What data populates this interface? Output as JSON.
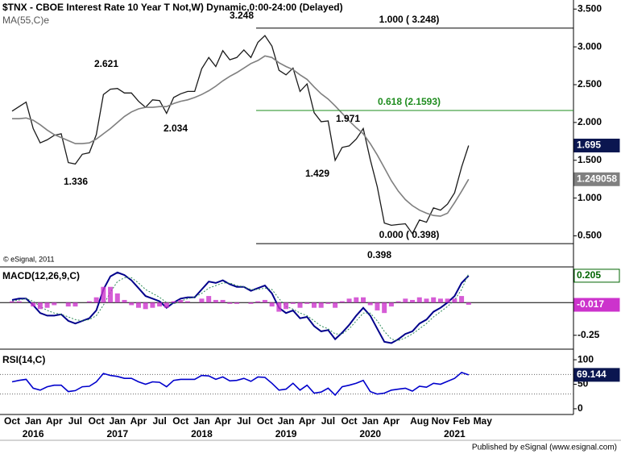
{
  "title": "$TNX - CBOE Interest Rate 10 Year T Not,W) Dynamic,0:00-24:00 (Delayed)",
  "ma_label": "MA(55,C)e",
  "copyright": "© eSignal, 2011",
  "footer": "Published by eSignal (www.esignal.com)",
  "categories": [
    "Oct",
    null,
    null,
    "Jan",
    null,
    null,
    "Apr",
    null,
    null,
    "Jul",
    null,
    null,
    "Oct",
    null,
    null,
    "Jan",
    null,
    null,
    "Apr",
    null,
    null,
    "Jul",
    null,
    null,
    "Oct",
    null,
    null,
    "Jan",
    null,
    null,
    "Apr",
    null,
    null,
    "Jul",
    null,
    null,
    "Oct",
    null,
    null,
    "Jan",
    null,
    null,
    "Apr",
    null,
    null,
    "Jul",
    null,
    null,
    "Oct",
    null,
    null,
    "Jan",
    null,
    null,
    "Apr",
    null,
    null,
    null,
    "Aug",
    null,
    null,
    "Nov",
    null,
    null,
    "Feb",
    null,
    null,
    "May"
  ],
  "years": [
    null,
    null,
    null,
    2016,
    null,
    null,
    null,
    null,
    null,
    null,
    null,
    null,
    null,
    null,
    null,
    2017,
    null,
    null,
    null,
    null,
    null,
    null,
    null,
    null,
    null,
    null,
    null,
    2018,
    null,
    null,
    null,
    null,
    null,
    null,
    null,
    null,
    null,
    null,
    null,
    2019,
    null,
    null,
    null,
    null,
    null,
    null,
    null,
    null,
    null,
    null,
    null,
    2020,
    null,
    null,
    null,
    null,
    null,
    null,
    null,
    null,
    null,
    null,
    null,
    2021,
    null,
    null,
    null,
    null
  ],
  "chart_data": [
    {
      "type": "line",
      "ylim": [
        0.1,
        3.62
      ],
      "yticks": [
        {
          "value": 3.5,
          "label": "3.500"
        },
        {
          "value": 3.0,
          "label": "3.000"
        },
        {
          "value": 2.5,
          "label": "2.500"
        },
        {
          "value": 2.0,
          "label": "2.000"
        },
        {
          "value": 1.5,
          "label": "1.500"
        },
        {
          "value": 1.0,
          "label": "1.000"
        },
        {
          "value": 0.5,
          "label": "0.500"
        }
      ],
      "series": [
        {
          "color": "#1a1a1a",
          "values": [
            2.15,
            2.21,
            2.27,
            1.92,
            1.73,
            1.77,
            1.83,
            1.85,
            1.47,
            1.45,
            1.58,
            1.6,
            1.84,
            2.37,
            2.44,
            2.45,
            2.39,
            2.39,
            2.28,
            2.2,
            2.3,
            2.29,
            2.12,
            2.33,
            2.38,
            2.41,
            2.41,
            2.71,
            2.86,
            2.74,
            2.95,
            2.83,
            2.86,
            2.96,
            2.86,
            3.06,
            3.15,
            3.01,
            2.69,
            2.63,
            2.72,
            2.41,
            2.51,
            2.13,
            2.01,
            2.02,
            1.5,
            1.67,
            1.69,
            1.78,
            1.92,
            1.51,
            1.15,
            0.67,
            0.64,
            0.65,
            0.66,
            0.53,
            0.71,
            0.68,
            0.87,
            0.84,
            0.92,
            1.07,
            1.41,
            1.695,
            null,
            null
          ]
        },
        {
          "color": "#7f7f7f",
          "values": [
            2.05,
            2.05,
            2.06,
            2.03,
            1.97,
            1.9,
            1.84,
            1.8,
            1.76,
            1.72,
            1.72,
            1.73,
            1.78,
            1.85,
            1.92,
            2.0,
            2.08,
            2.14,
            2.18,
            2.2,
            2.2,
            2.21,
            2.21,
            2.25,
            2.28,
            2.3,
            2.33,
            2.37,
            2.42,
            2.48,
            2.55,
            2.61,
            2.66,
            2.72,
            2.78,
            2.82,
            2.88,
            2.86,
            2.79,
            2.74,
            2.7,
            2.63,
            2.57,
            2.47,
            2.38,
            2.31,
            2.22,
            2.12,
            2.02,
            1.93,
            1.85,
            1.72,
            1.57,
            1.4,
            1.23,
            1.09,
            0.98,
            0.9,
            0.84,
            0.8,
            0.77,
            0.76,
            0.8,
            0.94,
            1.09,
            1.249058,
            null,
            null
          ]
        }
      ],
      "fib_levels": [
        {
          "value": 3.248,
          "label": "1.000 ( 3.248)",
          "color": "#000000"
        },
        {
          "value": 2.1593,
          "label": "0.618 (2.1593)",
          "color": "#1e8c1e"
        },
        {
          "value": 0.398,
          "label": "0.000 ( 0.398)",
          "color": "#000000"
        }
      ],
      "annotations": [
        "2.621",
        "2.034",
        "1.336",
        "3.248",
        "1.429",
        "1.971",
        "0.398"
      ]
    },
    {
      "type": "macd",
      "label": "MACD(12,26,9,C)",
      "ylim": [
        -0.35,
        0.26
      ],
      "yticks": [
        -0.25
      ],
      "series": [
        {
          "color": "#00008b",
          "values": [
            0.02,
            0.03,
            0.03,
            -0.02,
            -0.08,
            -0.1,
            -0.1,
            -0.09,
            -0.14,
            -0.16,
            -0.14,
            -0.12,
            -0.06,
            0.1,
            0.2,
            0.23,
            0.21,
            0.17,
            0.11,
            0.05,
            0.03,
            0.01,
            -0.04,
            0.0,
            0.03,
            0.04,
            0.04,
            0.1,
            0.16,
            0.15,
            0.17,
            0.14,
            0.12,
            0.12,
            0.09,
            0.11,
            0.13,
            0.07,
            -0.04,
            -0.08,
            -0.06,
            -0.12,
            -0.11,
            -0.18,
            -0.22,
            -0.21,
            -0.28,
            -0.23,
            -0.17,
            -0.1,
            -0.04,
            -0.1,
            -0.2,
            -0.3,
            -0.31,
            -0.28,
            -0.24,
            -0.22,
            -0.16,
            -0.13,
            -0.07,
            -0.04,
            0.0,
            0.05,
            0.15,
            0.205,
            null,
            null
          ],
          "value_color": "#006400"
        },
        {
          "color": "#2e8b57",
          "values": [
            0.01,
            0.02,
            0.03,
            0.01,
            -0.03,
            -0.06,
            -0.08,
            -0.09,
            -0.11,
            -0.13,
            -0.14,
            -0.13,
            -0.1,
            -0.02,
            0.08,
            0.16,
            0.19,
            0.19,
            0.15,
            0.1,
            0.07,
            0.04,
            0.0,
            -0.01,
            0.01,
            0.03,
            0.04,
            0.07,
            0.11,
            0.13,
            0.15,
            0.15,
            0.13,
            0.12,
            0.1,
            0.1,
            0.11,
            0.1,
            0.03,
            -0.03,
            -0.05,
            -0.08,
            -0.1,
            -0.14,
            -0.18,
            -0.2,
            -0.24,
            -0.24,
            -0.2,
            -0.14,
            -0.08,
            -0.08,
            -0.14,
            -0.22,
            -0.28,
            -0.29,
            -0.27,
            -0.24,
            -0.2,
            -0.16,
            -0.11,
            -0.07,
            -0.03,
            0.02,
            0.1,
            0.222,
            null,
            null
          ],
          "dotted": true
        },
        {
          "color": "#cc33cc",
          "values": [
            0.01,
            0.01,
            0.0,
            -0.03,
            -0.05,
            -0.04,
            -0.02,
            0.0,
            -0.03,
            -0.03,
            0.0,
            0.01,
            0.04,
            0.12,
            0.12,
            0.07,
            0.02,
            -0.02,
            -0.04,
            -0.05,
            -0.04,
            -0.03,
            -0.04,
            0.01,
            0.02,
            0.01,
            0.0,
            0.03,
            0.05,
            0.02,
            0.02,
            -0.01,
            -0.01,
            0.0,
            -0.01,
            0.01,
            0.02,
            -0.03,
            -0.07,
            -0.05,
            -0.01,
            -0.04,
            -0.01,
            -0.04,
            -0.04,
            -0.01,
            -0.04,
            0.01,
            0.03,
            0.04,
            0.04,
            -0.02,
            -0.06,
            -0.08,
            -0.03,
            0.01,
            0.03,
            0.02,
            0.04,
            0.03,
            0.04,
            0.03,
            0.03,
            0.03,
            0.05,
            -0.017,
            null,
            null
          ],
          "histogram": true
        }
      ]
    },
    {
      "type": "rsi",
      "label": "RSI(14,C)",
      "ylim": [
        -10,
        115
      ],
      "yticks": [
        100,
        50,
        0
      ],
      "levels": [
        70,
        30
      ],
      "series": [
        {
          "color": "#0000cc",
          "values": [
            55,
            58,
            60,
            42,
            38,
            45,
            48,
            48,
            35,
            37,
            45,
            46,
            55,
            72,
            68,
            66,
            62,
            62,
            55,
            50,
            55,
            54,
            45,
            58,
            60,
            60,
            60,
            68,
            67,
            60,
            65,
            57,
            58,
            62,
            56,
            65,
            64,
            52,
            38,
            40,
            52,
            38,
            48,
            32,
            34,
            42,
            28,
            45,
            48,
            52,
            58,
            35,
            30,
            32,
            38,
            40,
            42,
            36,
            46,
            44,
            52,
            50,
            56,
            62,
            74,
            69.144,
            null,
            null
          ]
        }
      ]
    }
  ]
}
